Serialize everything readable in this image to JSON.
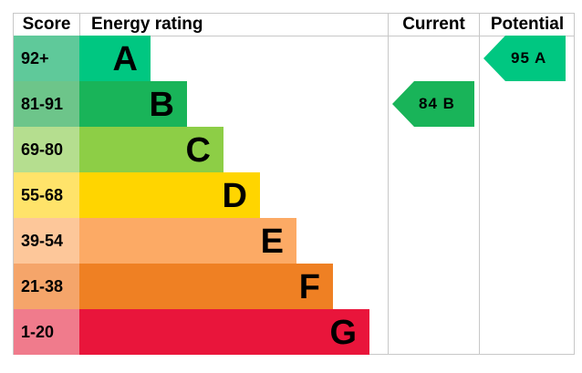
{
  "headers": {
    "score": "Score",
    "energy_rating": "Energy rating",
    "current": "Current",
    "potential": "Potential"
  },
  "bands": [
    {
      "range": "92+",
      "letter": "A",
      "bar_color": "#00c781",
      "score_bg": "#5fc99a"
    },
    {
      "range": "81-91",
      "letter": "B",
      "bar_color": "#19b459",
      "score_bg": "#6dc58a"
    },
    {
      "range": "69-80",
      "letter": "C",
      "bar_color": "#8dce46",
      "score_bg": "#b5de8f"
    },
    {
      "range": "55-68",
      "letter": "D",
      "bar_color": "#ffd500",
      "score_bg": "#ffe36a"
    },
    {
      "range": "39-54",
      "letter": "E",
      "bar_color": "#fcaa65",
      "score_bg": "#fdc79a"
    },
    {
      "range": "21-38",
      "letter": "F",
      "bar_color": "#ef8023",
      "score_bg": "#f5a56a"
    },
    {
      "range": "1-20",
      "letter": "G",
      "bar_color": "#e9153b",
      "score_bg": "#f07b8c"
    }
  ],
  "current": {
    "label": "84 B",
    "score": 84,
    "band": "B",
    "color": "#19b459"
  },
  "potential": {
    "label": "95 A",
    "score": 95,
    "band": "A",
    "color": "#00c781"
  },
  "chart_data": {
    "type": "table",
    "columns": [
      "Score",
      "Energy rating",
      "Current",
      "Potential"
    ],
    "categories": [
      "A",
      "B",
      "C",
      "D",
      "E",
      "F",
      "G"
    ],
    "ranges": [
      "92+",
      "81-91",
      "69-80",
      "55-68",
      "39-54",
      "21-38",
      "1-20"
    ],
    "current": {
      "value": 84,
      "band": "B"
    },
    "potential": {
      "value": 95,
      "band": "A"
    }
  }
}
